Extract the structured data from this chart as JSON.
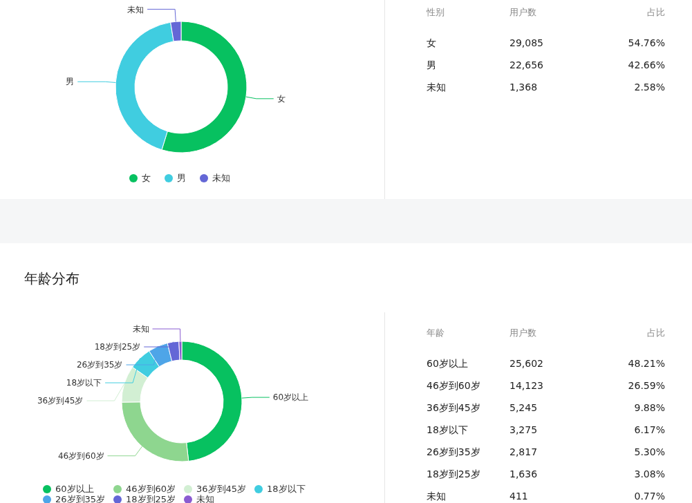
{
  "chart_data": [
    {
      "type": "donut",
      "categories": [
        "女",
        "男",
        "未知"
      ],
      "values": [
        54.76,
        42.66,
        2.58
      ],
      "colors": [
        "#07c160",
        "#40cde0",
        "#6467d6"
      ],
      "legend": "bottom"
    },
    {
      "type": "other",
      "data_labels": true,
      "xlabel": "性别",
      "categories": [
        "女",
        "男",
        "未知"
      ],
      "series": [
        {
          "name": "用户数",
          "values": [
            29085,
            22656,
            1368
          ],
          "value_labels": [
            "29,085",
            "22,656",
            "1,368"
          ]
        },
        {
          "name": "占比",
          "values": [
            54.76,
            42.66,
            2.58
          ],
          "value_labels": [
            "54.76%",
            "42.66%",
            "2.58%"
          ]
        }
      ]
    },
    {
      "type": "donut",
      "title": "年龄分布",
      "categories": [
        "60岁以上",
        "46岁到60岁",
        "36岁到45岁",
        "18岁以下",
        "26岁到35岁",
        "18岁到25岁",
        "未知"
      ],
      "values": [
        48.21,
        26.59,
        9.88,
        6.17,
        5.3,
        3.08,
        0.77
      ],
      "colors": [
        "#07c160",
        "#8ed68f",
        "#d2efd3",
        "#40cde0",
        "#4ea5e8",
        "#6467d6",
        "#8a5cd1"
      ],
      "legend": "bottom"
    },
    {
      "type": "other",
      "data_labels": true,
      "xlabel": "年龄",
      "categories": [
        "60岁以上",
        "46岁到60岁",
        "36岁到45岁",
        "18岁以下",
        "26岁到35岁",
        "18岁到25岁",
        "未知"
      ],
      "series": [
        {
          "name": "用户数",
          "values": [
            25602,
            14123,
            5245,
            3275,
            2817,
            1636,
            411
          ],
          "value_labels": [
            "25,602",
            "14,123",
            "5,245",
            "3,275",
            "2,817",
            "1,636",
            "411"
          ]
        },
        {
          "name": "占比",
          "values": [
            48.21,
            26.59,
            9.88,
            6.17,
            5.3,
            3.08,
            0.77
          ],
          "value_labels": [
            "48.21%",
            "26.59%",
            "9.88%",
            "6.17%",
            "5.30%",
            "3.08%",
            "0.77%"
          ]
        }
      ]
    }
  ]
}
